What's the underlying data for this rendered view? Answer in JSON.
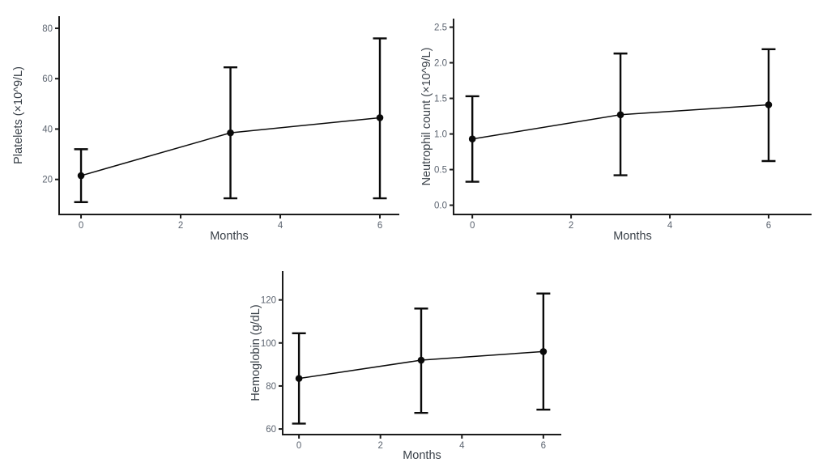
{
  "figure": {
    "background": "#ffffff",
    "panels": [
      "platelets",
      "neutrophils",
      "hemoglobin"
    ]
  },
  "colors": {
    "series": "#0a0a0a",
    "error_bar": "#0a0a0a",
    "axis_line": "#1b1b1b",
    "tick_label": "#5c6470",
    "axis_title": "#3a4149"
  },
  "chart_data": [
    {
      "id": "platelets",
      "type": "line",
      "title": "",
      "xlabel": "Months",
      "ylabel": "Platelets (×10^9/L)",
      "x": [
        0,
        3,
        6
      ],
      "values": [
        21.5,
        38.5,
        44.5
      ],
      "err_low": [
        11,
        12.5,
        12.5
      ],
      "err_high": [
        32,
        64.5,
        76
      ],
      "x_ticks": {
        "values": [
          0,
          2,
          4,
          6
        ],
        "labels": [
          "0",
          "2",
          "4",
          "6"
        ]
      },
      "y_ticks": {
        "values": [
          20,
          40,
          60,
          80
        ],
        "labels": [
          "20",
          "40",
          "60",
          "80"
        ]
      },
      "xlim": [
        -0.44,
        6.39
      ],
      "ylim": [
        6.1,
        84.8
      ],
      "grid": false,
      "legend": false,
      "error_bars": true
    },
    {
      "id": "neutrophils",
      "type": "line",
      "title": "",
      "xlabel": "Months",
      "ylabel": "Neutrophil count (×10^9/L)",
      "x": [
        0,
        3,
        6
      ],
      "values": [
        0.93,
        1.27,
        1.41
      ],
      "err_low": [
        0.33,
        0.42,
        0.62
      ],
      "err_high": [
        1.53,
        2.13,
        2.19
      ],
      "x_ticks": {
        "values": [
          0,
          2,
          4,
          6
        ],
        "labels": [
          "0",
          "2",
          "4",
          "6"
        ]
      },
      "y_ticks": {
        "values": [
          0,
          0.5,
          1,
          1.5,
          2,
          2.5
        ],
        "labels": [
          "0.0",
          "0.5",
          "1.0",
          "1.5",
          "2.0",
          "2.5"
        ]
      },
      "xlim": [
        -0.38,
        6.87
      ],
      "ylim": [
        -0.13,
        2.62
      ],
      "grid": false,
      "legend": false,
      "error_bars": true
    },
    {
      "id": "hemoglobin",
      "type": "line",
      "title": "",
      "xlabel": "Months",
      "ylabel": "Hemoglobin (g/dL)",
      "x": [
        0,
        3,
        6
      ],
      "values": [
        83.5,
        92,
        96
      ],
      "err_low": [
        62.5,
        67.5,
        69
      ],
      "err_high": [
        104.5,
        116,
        123
      ],
      "x_ticks": {
        "values": [
          0,
          2,
          4,
          6
        ],
        "labels": [
          "0",
          "2",
          "4",
          "6"
        ]
      },
      "y_ticks": {
        "values": [
          60,
          80,
          100,
          120
        ],
        "labels": [
          "60",
          "80",
          "100",
          "120"
        ]
      },
      "xlim": [
        -0.4,
        6.44
      ],
      "ylim": [
        57.4,
        133.4
      ],
      "grid": false,
      "legend": false,
      "error_bars": true
    }
  ]
}
